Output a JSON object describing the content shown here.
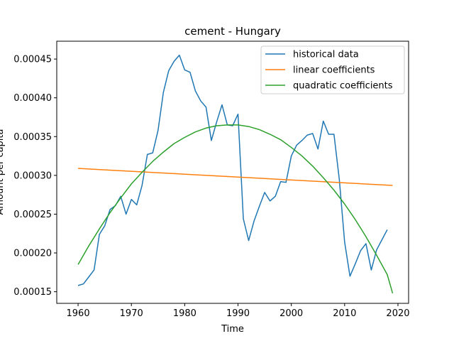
{
  "chart_data": {
    "type": "line",
    "title": "cement - Hungary",
    "xlabel": "Time",
    "ylabel": "Amount per capita",
    "xlim": [
      1956,
      2022
    ],
    "ylim": [
      0.000135,
      0.000473
    ],
    "xticks": [
      1960,
      1970,
      1980,
      1990,
      2000,
      2010,
      2020
    ],
    "xtick_labels": [
      "1960",
      "1970",
      "1980",
      "1990",
      "2000",
      "2010",
      "2020"
    ],
    "yticks": [
      0.00015,
      0.0002,
      0.00025,
      0.0003,
      0.00035,
      0.0004,
      0.00045
    ],
    "ytick_labels": [
      "0.00015",
      "0.00020",
      "0.00025",
      "0.00030",
      "0.00035",
      "0.00040",
      "0.00045"
    ],
    "grid": false,
    "legend_position": "top-right",
    "series": [
      {
        "name": "historical data",
        "color": "#1f77b4",
        "x": [
          1960,
          1961,
          1962,
          1963,
          1964,
          1965,
          1966,
          1967,
          1968,
          1969,
          1970,
          1971,
          1972,
          1973,
          1974,
          1975,
          1976,
          1977,
          1978,
          1979,
          1980,
          1981,
          1982,
          1983,
          1984,
          1985,
          1986,
          1987,
          1988,
          1989,
          1990,
          1991,
          1992,
          1993,
          1994,
          1995,
          1996,
          1997,
          1998,
          1999,
          2000,
          2001,
          2002,
          2003,
          2004,
          2005,
          2006,
          2007,
          2008,
          2009,
          2010,
          2011,
          2012,
          2013,
          2014,
          2015,
          2016,
          2017,
          2018
        ],
        "y": [
          0.000158,
          0.00016,
          0.000169,
          0.000178,
          0.000224,
          0.000235,
          0.000256,
          0.000261,
          0.000273,
          0.00025,
          0.000269,
          0.000262,
          0.000287,
          0.000327,
          0.000329,
          0.000358,
          0.000407,
          0.000435,
          0.000447,
          0.000455,
          0.000436,
          0.000433,
          0.000409,
          0.000396,
          0.000388,
          0.000345,
          0.000369,
          0.000391,
          0.000365,
          0.000364,
          0.000379,
          0.000244,
          0.000216,
          0.000241,
          0.00026,
          0.000278,
          0.000267,
          0.000273,
          0.000292,
          0.000291,
          0.000325,
          0.000339,
          0.000345,
          0.000352,
          0.000354,
          0.000334,
          0.00037,
          0.000353,
          0.000353,
          0.000295,
          0.000214,
          0.00017,
          0.000186,
          0.000203,
          0.000212,
          0.000178,
          0.000204,
          0.000217,
          0.00023
        ]
      },
      {
        "name": "linear coefficients",
        "color": "#ff7f0e",
        "x": [
          1960,
          2019
        ],
        "y": [
          0.000309,
          0.000287
        ]
      },
      {
        "name": "quadratic coefficients",
        "color": "#2ca02c",
        "x": [
          1960,
          1962,
          1964,
          1966,
          1968,
          1970,
          1972,
          1974,
          1976,
          1978,
          1980,
          1982,
          1984,
          1986,
          1988,
          1990,
          1992,
          1994,
          1996,
          1998,
          2000,
          2002,
          2004,
          2006,
          2008,
          2010,
          2012,
          2014,
          2016,
          2018,
          2019
        ],
        "y": [
          0.000185,
          0.000209,
          0.000231,
          0.000252,
          0.000271,
          0.000289,
          0.000304,
          0.000318,
          0.00033,
          0.000341,
          0.000349,
          0.000356,
          0.000361,
          0.000364,
          0.000365,
          0.000365,
          0.000363,
          0.000359,
          0.000353,
          0.000346,
          0.000336,
          0.000325,
          0.000312,
          0.000297,
          0.000281,
          0.000263,
          0.000243,
          0.000221,
          0.000197,
          0.000172,
          0.000148
        ]
      }
    ]
  }
}
